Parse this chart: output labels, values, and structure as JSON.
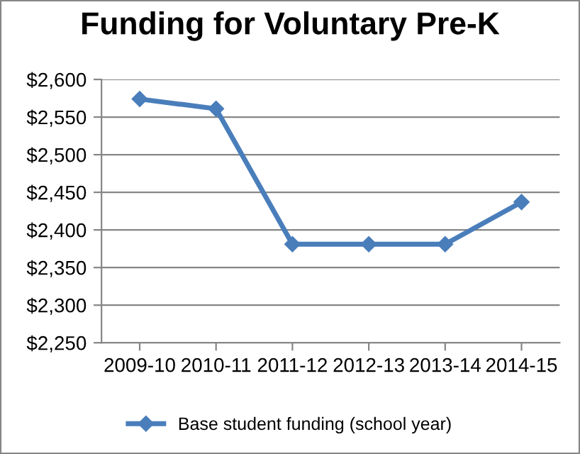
{
  "chart_data": {
    "type": "line",
    "title": "Funding for Voluntary Pre-K",
    "categories": [
      "2009-10",
      "2010-11",
      "2011-12",
      "2012-13",
      "2013-14",
      "2014-15"
    ],
    "series": [
      {
        "name": "Base student funding (school year)",
        "color": "#4a7ebb",
        "values": [
          2574,
          2561,
          2381,
          2381,
          2381,
          2437
        ]
      }
    ],
    "ylim": [
      2250,
      2600
    ],
    "yticks": [
      {
        "value": 2250,
        "label": "$2,250"
      },
      {
        "value": 2300,
        "label": "$2,300"
      },
      {
        "value": 2350,
        "label": "$2,350"
      },
      {
        "value": 2400,
        "label": "$2,400"
      },
      {
        "value": 2450,
        "label": "$2,450"
      },
      {
        "value": 2500,
        "label": "$2,500"
      },
      {
        "value": 2550,
        "label": "$2,550"
      },
      {
        "value": 2600,
        "label": "$2,600"
      }
    ],
    "grid": "y",
    "legend": "bottom",
    "marker": "diamond",
    "line_style": "solid"
  }
}
